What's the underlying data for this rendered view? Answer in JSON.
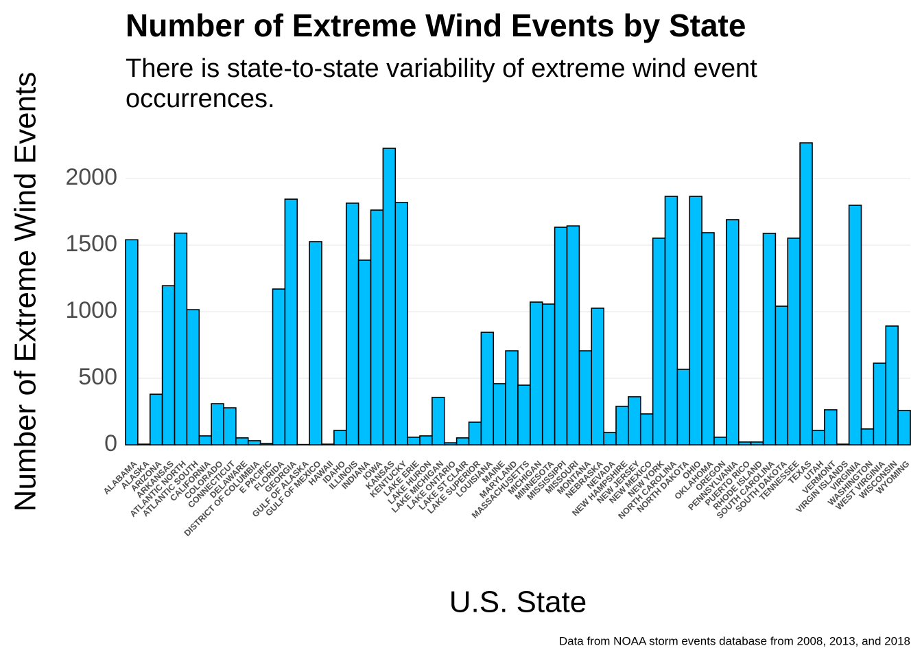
{
  "chart_data": {
    "type": "bar",
    "title": "Number of Extreme Wind Events by State",
    "subtitle": "There is state-to-state variability of extreme wind event occurrences.",
    "x_label": "U.S. State",
    "y_label": "Number of Extreme Wind Events",
    "caption": "Data from NOAA storm events database from 2008, 2013, and 2018",
    "categories": [
      "ALABAMA",
      "ALASKA",
      "ARIZONA",
      "ARKANSAS",
      "ATLANTIC NORTH",
      "ATLANTIC SOUTH",
      "CALIFORNIA",
      "COLORADO",
      "CONNECTICUT",
      "DELAWARE",
      "DISTRICT OF COLUMBIA",
      "E PACIFIC",
      "FLORIDA",
      "GEORGIA",
      "GULF OF ALASKA",
      "GULF OF MEXICO",
      "HAWAII",
      "IDAHO",
      "ILLINOIS",
      "INDIANA",
      "IOWA",
      "KANSAS",
      "KENTUCKY",
      "LAKE ERIE",
      "LAKE HURON",
      "LAKE MICHIGAN",
      "LAKE ONTARIO",
      "LAKE ST CLAIR",
      "LAKE SUPERIOR",
      "LOUISIANA",
      "MAINE",
      "MARYLAND",
      "MASSACHUSETTS",
      "MICHIGAN",
      "MINNESOTA",
      "MISSISSIPPI",
      "MISSOURI",
      "MONTANA",
      "NEBRASKA",
      "NEVADA",
      "NEW HAMPSHIRE",
      "NEW JERSEY",
      "NEW MEXICO",
      "NEW YORK",
      "NORTH CAROLINA",
      "NORTH DAKOTA",
      "OHIO",
      "OKLAHOMA",
      "OREGON",
      "PENNSYLVANIA",
      "PUERTO RICO",
      "RHODE ISLAND",
      "SOUTH CAROLINA",
      "SOUTH DAKOTA",
      "TENNESSEE",
      "TEXAS",
      "UTAH",
      "VERMONT",
      "VIRGIN ISLANDS",
      "VIRGINIA",
      "WASHINGTON",
      "WEST VIRGINIA",
      "WISCONSIN",
      "WYOMING"
    ],
    "values": [
      1540,
      5,
      380,
      1195,
      1590,
      1015,
      67,
      309,
      278,
      52,
      31,
      10,
      1170,
      1845,
      2,
      1526,
      5,
      108,
      1815,
      1387,
      1763,
      2227,
      1820,
      57,
      67,
      356,
      15,
      52,
      170,
      845,
      459,
      706,
      448,
      1072,
      1057,
      1634,
      1644,
      706,
      1026,
      93,
      289,
      361,
      232,
      1552,
      1866,
      567,
      1866,
      1593,
      57,
      1691,
      21,
      21,
      1588,
      1041,
      1552,
      2268,
      108,
      263,
      5,
      1799,
      119,
      613,
      892,
      258
    ],
    "color": "#00bfff",
    "ylim": [
      -62,
      2387
    ],
    "yticks": [
      0,
      500,
      1000,
      1500,
      2000
    ],
    "grid": true
  }
}
